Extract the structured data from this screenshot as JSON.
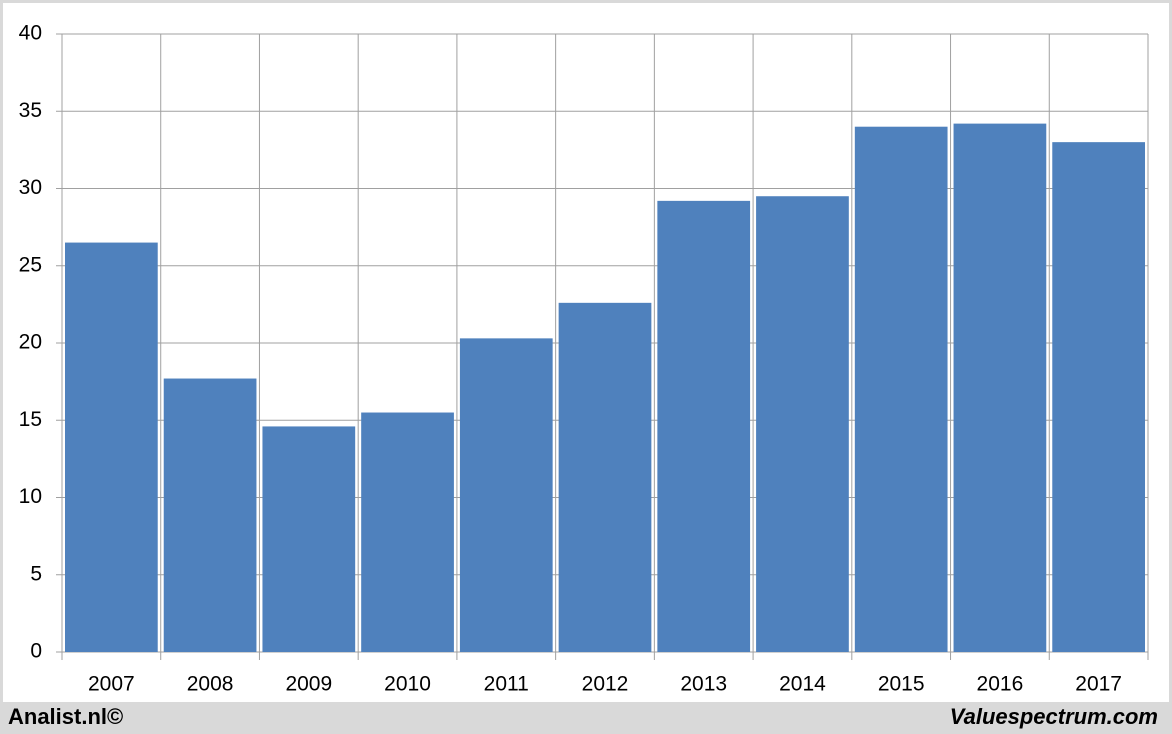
{
  "chart_data": {
    "type": "bar",
    "categories": [
      "2007",
      "2008",
      "2009",
      "2010",
      "2011",
      "2012",
      "2013",
      "2014",
      "2015",
      "2016",
      "2017"
    ],
    "values": [
      26.5,
      17.7,
      14.6,
      15.5,
      20.3,
      22.6,
      29.2,
      29.5,
      34.0,
      34.2,
      33.0
    ],
    "color": "#4f81bd",
    "ylim": [
      0,
      40
    ],
    "yticks": [
      0,
      5,
      10,
      15,
      20,
      25,
      30,
      35,
      40
    ],
    "grid": true
  },
  "footer": {
    "left": "Analist.nl©",
    "right": "Valuespectrum.com"
  }
}
